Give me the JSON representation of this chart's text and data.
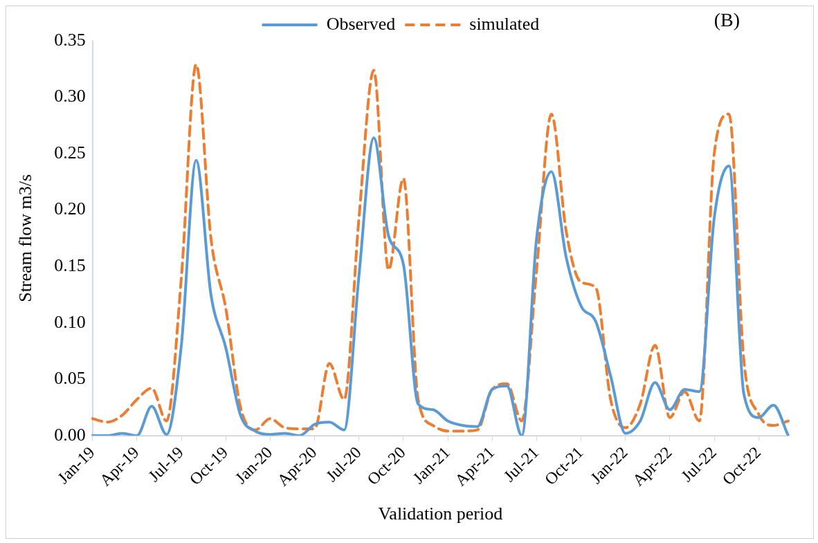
{
  "chart_data": {
    "type": "line",
    "ylabel": "Stream flow m3/s",
    "xlabel": "Validation period",
    "annotations": [
      "(B)"
    ],
    "categories": [
      "Jan-19",
      null,
      null,
      "Apr-19",
      null,
      null,
      "Jul-19",
      null,
      null,
      "Oct-19",
      null,
      null,
      "Jan-20",
      null,
      null,
      "Apr-20",
      null,
      null,
      "Jul-20",
      null,
      null,
      "Oct-20",
      null,
      null,
      "Jan-21",
      null,
      null,
      "Apr-21",
      null,
      null,
      "Jul-21",
      null,
      null,
      "Oct-21",
      null,
      null,
      "Jan-22",
      null,
      null,
      "Apr-22",
      null,
      null,
      "Jul-22",
      null,
      null,
      "Oct-22",
      null,
      null
    ],
    "series": [
      {
        "name": "Observed",
        "color": "#5b9bd5",
        "line_style": "solid",
        "values": [
          0.0,
          0.0,
          0.002,
          0.0,
          0.026,
          0.001,
          0.08,
          0.244,
          0.125,
          0.078,
          0.018,
          0.004,
          0.001,
          0.002,
          0.0,
          0.01,
          0.012,
          0.005,
          0.142,
          0.264,
          0.177,
          0.152,
          0.028,
          0.023,
          0.013,
          0.009,
          0.008,
          0.041,
          0.044,
          0.0,
          0.175,
          0.234,
          0.158,
          0.115,
          0.101,
          0.053,
          0.002,
          0.013,
          0.047,
          0.023,
          0.041,
          0.039,
          0.193,
          0.239,
          0.037,
          0.016,
          0.027,
          0.0
        ]
      },
      {
        "name": "simulated",
        "color": "#ed7d31",
        "line_style": "dashed",
        "values": [
          0.015,
          0.012,
          0.018,
          0.032,
          0.042,
          0.013,
          0.14,
          0.329,
          0.175,
          0.113,
          0.025,
          0.005,
          0.015,
          0.007,
          0.006,
          0.006,
          0.064,
          0.032,
          0.193,
          0.324,
          0.147,
          0.228,
          0.032,
          0.009,
          0.004,
          0.004,
          0.005,
          0.041,
          0.046,
          0.013,
          0.147,
          0.285,
          0.181,
          0.136,
          0.131,
          0.032,
          0.007,
          0.028,
          0.08,
          0.016,
          0.039,
          0.013,
          0.25,
          0.285,
          0.067,
          0.019,
          0.009,
          0.013
        ]
      }
    ],
    "ylim": [
      0,
      0.35
    ],
    "yticks": [
      {
        "value": 0,
        "label": "0.00"
      },
      {
        "value": 0.05,
        "label": "0.05"
      },
      {
        "value": 0.1,
        "label": "0.10"
      },
      {
        "value": 0.15,
        "label": "0.15"
      },
      {
        "value": 0.2,
        "label": "0.20"
      },
      {
        "value": 0.25,
        "label": "0.25"
      },
      {
        "value": 0.3,
        "label": "0.30"
      },
      {
        "value": 0.35,
        "label": "0.35"
      }
    ],
    "grid": false,
    "legend": "top",
    "marker": "none"
  }
}
